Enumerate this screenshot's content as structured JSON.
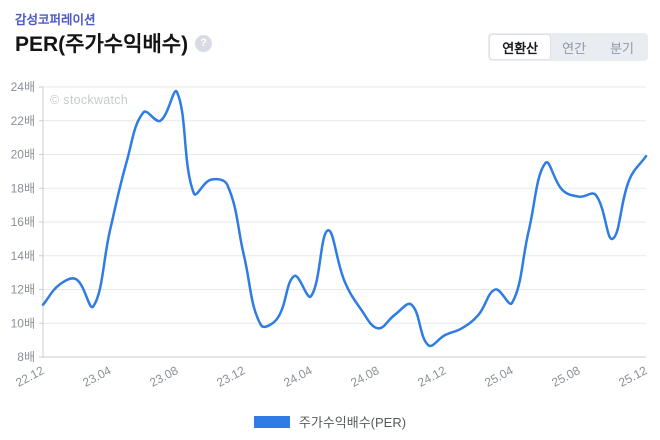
{
  "header": {
    "company": "감성코퍼레이션",
    "title": "PER(주가수익배수)",
    "help_icon": "?",
    "period_tabs": [
      {
        "label": "연환산",
        "selected": true
      },
      {
        "label": "연간",
        "selected": false
      },
      {
        "label": "분기",
        "selected": false
      }
    ]
  },
  "watermark": "© stockwatch",
  "legend": {
    "label": "주가수익배수(PER)",
    "color": "#2e7ce4"
  },
  "colors": {
    "line": "#2e7ce4",
    "grid": "#e9e9eb",
    "axis": "#c9cdd2",
    "tick_text": "#8b9099",
    "company_accent": "#4c58c5"
  },
  "chart_data": {
    "type": "line",
    "title": "PER(주가수익배수)",
    "x": [
      "22.12",
      "23.01",
      "23.02",
      "23.03",
      "23.04",
      "23.05",
      "23.06",
      "23.07",
      "23.08",
      "23.09",
      "23.10",
      "23.11",
      "23.12",
      "24.01",
      "24.02",
      "24.03",
      "24.04",
      "24.05",
      "24.06",
      "24.07",
      "24.08",
      "24.09",
      "24.10",
      "24.11",
      "24.12",
      "25.01",
      "25.02",
      "25.03",
      "25.04",
      "25.05",
      "25.06",
      "25.07",
      "25.08",
      "25.09",
      "25.10",
      "25.11",
      "25.12"
    ],
    "series": [
      {
        "name": "주가수익배수(PER)",
        "color": "#2e7ce4",
        "values": [
          11.1,
          12.3,
          12.6,
          11.0,
          15.5,
          19.6,
          22.5,
          22.0,
          23.7,
          17.7,
          18.5,
          18.2,
          14.0,
          9.9,
          10.3,
          12.8,
          11.6,
          15.5,
          12.5,
          10.8,
          9.7,
          10.5,
          11.1,
          8.7,
          9.3,
          9.7,
          10.5,
          12.0,
          11.2,
          15.5,
          19.5,
          17.9,
          17.5,
          17.6,
          15.0,
          18.5,
          19.9
        ]
      }
    ],
    "x_tick_indices": [
      0,
      4,
      8,
      12,
      16,
      20,
      24,
      28,
      32,
      36
    ],
    "x_tick_labels": [
      "22.12",
      "23.04",
      "23.08",
      "23.12",
      "24.04",
      "24.08",
      "24.12",
      "25.04",
      "25.08",
      "25.12"
    ],
    "y_ticks": [
      8,
      10,
      12,
      14,
      16,
      18,
      20,
      22,
      24
    ],
    "y_tick_suffix": "배",
    "ylim": [
      8,
      24
    ],
    "grid": true,
    "line_tension": 0.4,
    "legend_position": "bottom",
    "x_label_rotation_deg": -28
  }
}
